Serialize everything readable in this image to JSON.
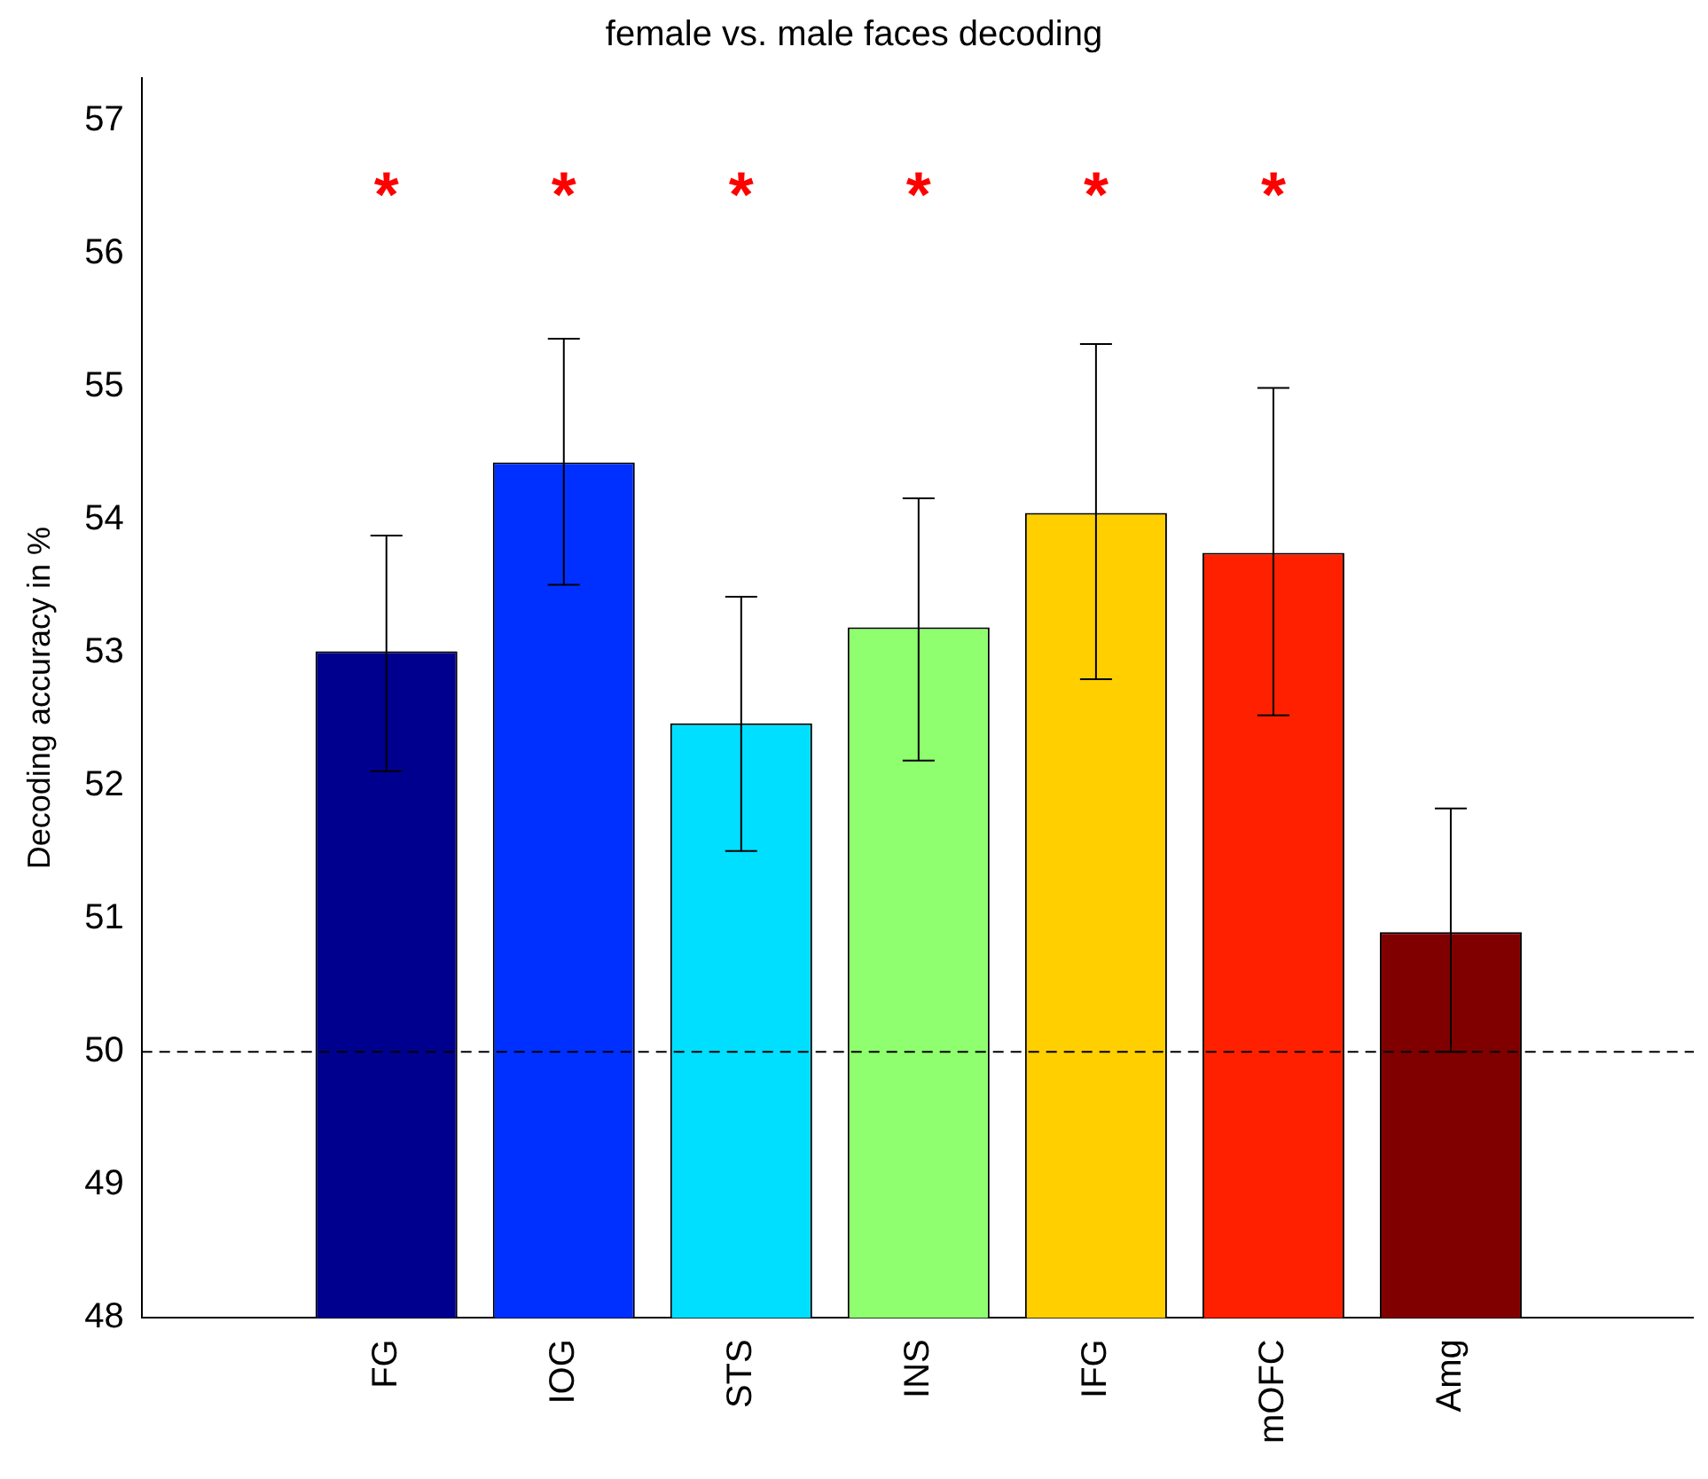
{
  "chart_data": {
    "type": "bar",
    "title": "female vs. male faces decoding",
    "ylabel": "Decoding accuracy in %",
    "categories": [
      "FG",
      "IOG",
      "STS",
      "INS",
      "IFG",
      "mOFC",
      "Amg"
    ],
    "values": [
      53.01,
      54.43,
      52.47,
      53.19,
      54.05,
      53.75,
      50.9
    ],
    "colors": [
      "#00008f",
      "#0030ff",
      "#00dfff",
      "#8fff6f",
      "#ffcf00",
      "#ff2000",
      "#800000"
    ],
    "errors": [
      [
        52.11,
        53.88
      ],
      [
        53.51,
        55.36
      ],
      [
        51.51,
        53.42
      ],
      [
        52.19,
        54.16
      ],
      [
        52.8,
        55.32
      ],
      [
        52.53,
        54.99
      ],
      [
        50.0,
        51.83
      ]
    ],
    "ylim": [
      48,
      57.32
    ],
    "yticks": [
      48,
      49,
      50,
      51,
      52,
      53,
      54,
      55,
      56,
      57
    ],
    "grid": false,
    "legend": false,
    "ref_lines": [
      {
        "axis": "y",
        "value": 50,
        "color": "#000000",
        "line_style": "dashed"
      }
    ],
    "annotations": [
      "*",
      "*",
      "*",
      "*",
      "*",
      "*"
    ]
  }
}
